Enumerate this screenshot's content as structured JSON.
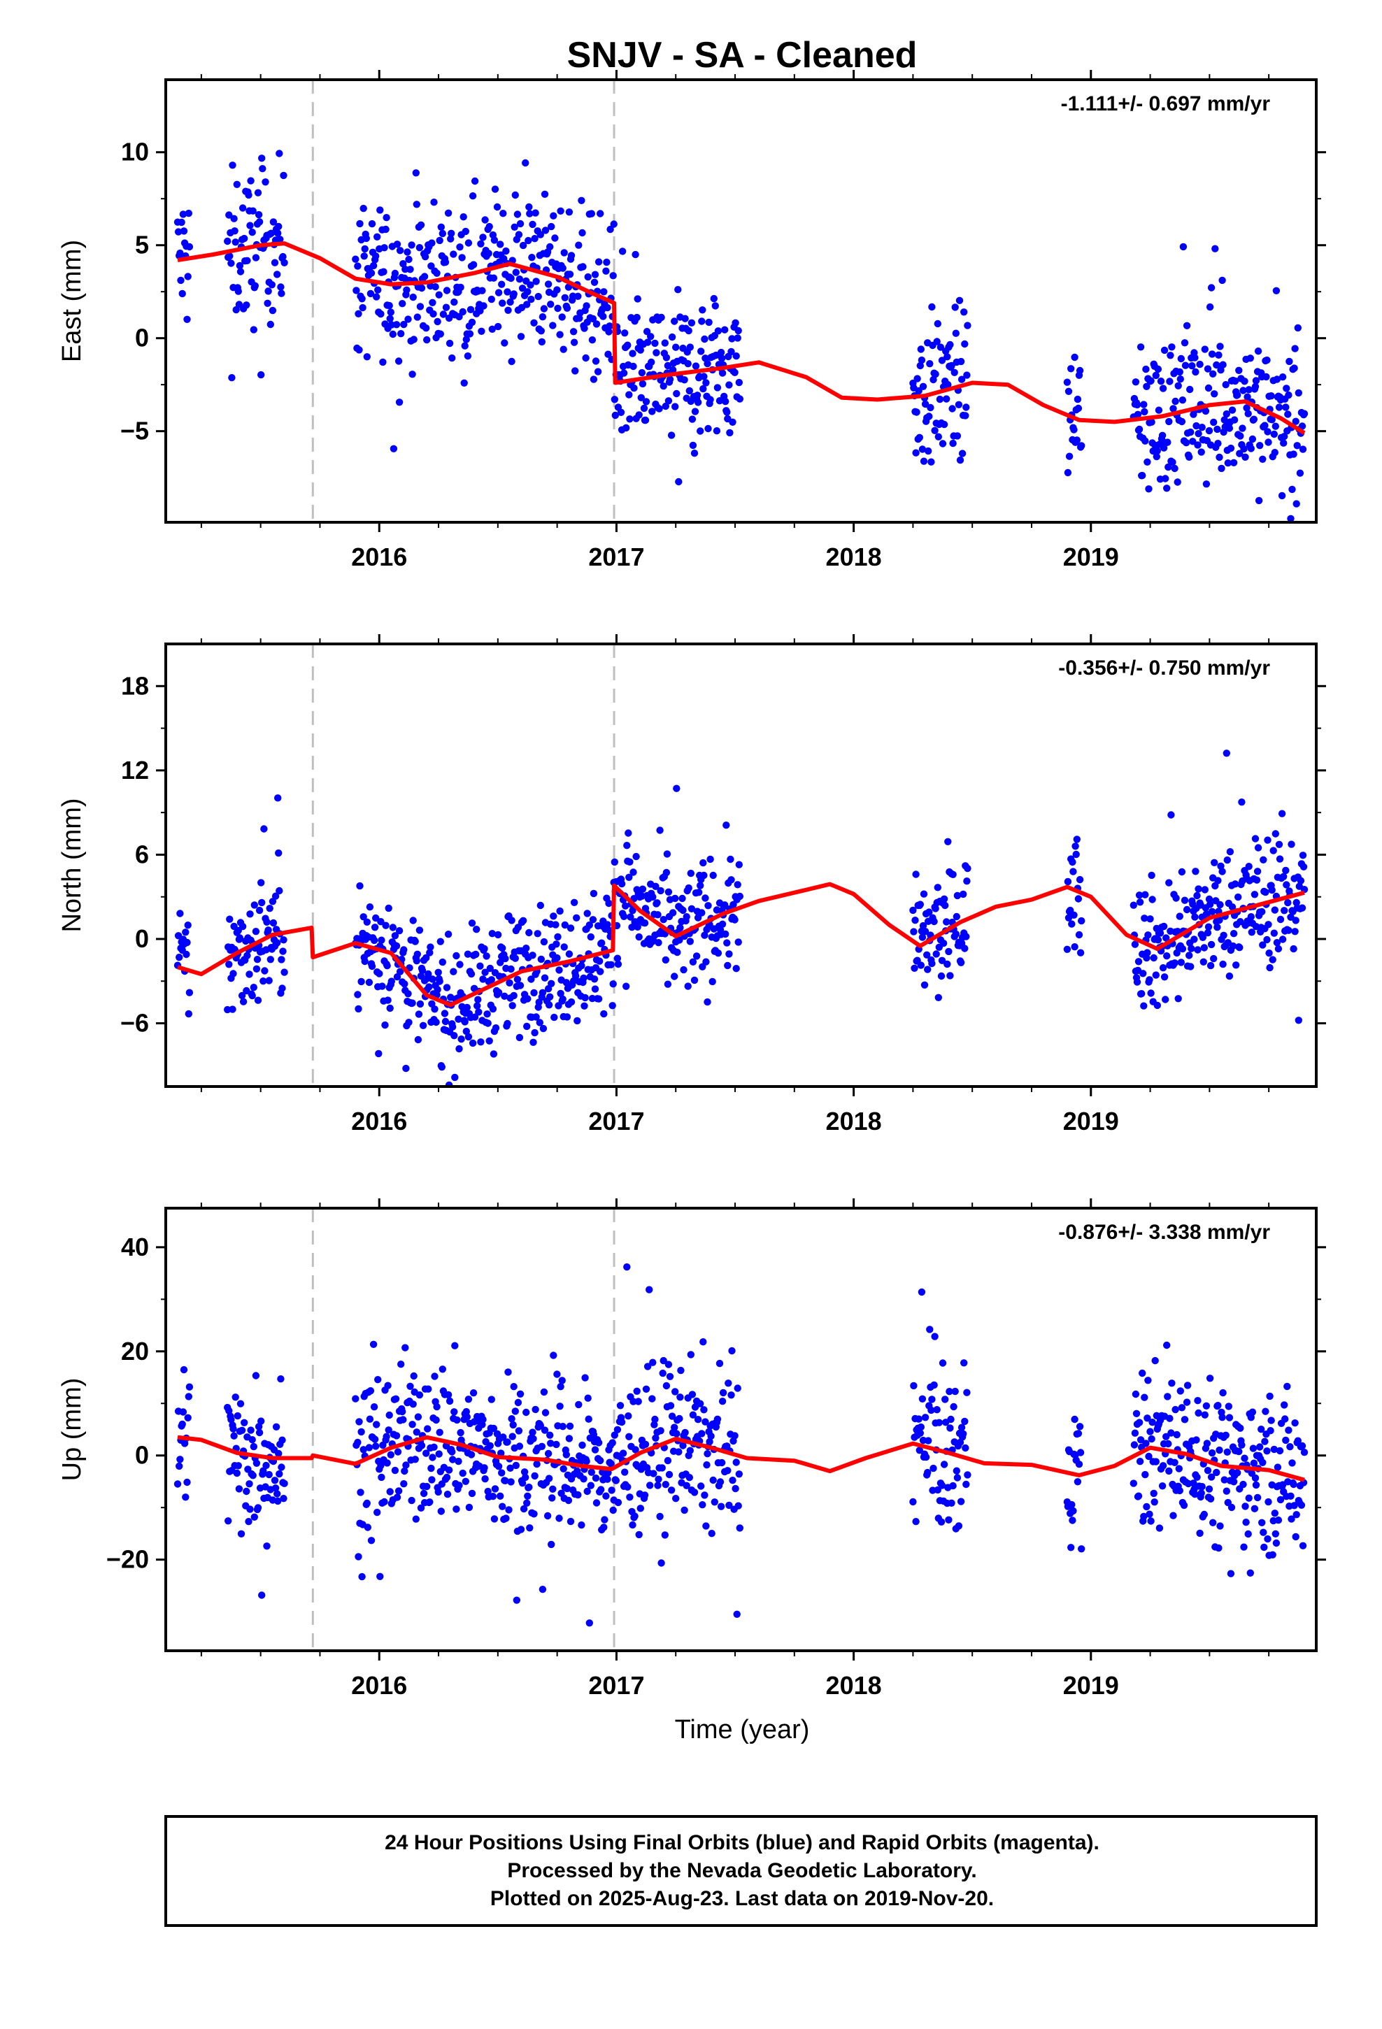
{
  "title": "SNJV  - SA - Cleaned",
  "xlabel": "Time (year)",
  "footer": [
    "24 Hour Positions Using Final Orbits (blue) and Rapid Orbits (magenta).",
    "Processed by the Nevada Geodetic Laboratory.",
    "Plotted on 2025-Aug-23. Last data on 2019-Nov-20."
  ],
  "colors": {
    "final_orbits": "#0000ff",
    "model": "#ff0000",
    "steps": "#bfbfbf"
  },
  "chart_data": [
    {
      "type": "scatter",
      "component": "east",
      "ylabel": "East (mm)",
      "rate_text": "-1.111+/- 0.697 mm/yr",
      "xlim": [
        2015.1,
        2019.95
      ],
      "ylim": [
        -9.9,
        13.9
      ],
      "yticks": [
        -5,
        0,
        5,
        10
      ],
      "yticklabels": [
        "−5",
        "0",
        "5",
        "10"
      ],
      "xticks": [
        2016,
        2017,
        2018,
        2019
      ],
      "step_lines": [
        2015.72,
        2016.99
      ],
      "data_segments": [
        [
          2015.15,
          2015.2
        ],
        [
          2015.36,
          2015.6
        ],
        [
          2015.9,
          2017.52
        ],
        [
          2018.25,
          2018.48
        ],
        [
          2018.9,
          2018.96
        ],
        [
          2019.18,
          2019.9
        ]
      ],
      "model": [
        [
          2015.15,
          4.2
        ],
        [
          2015.3,
          4.5
        ],
        [
          2015.5,
          5.0
        ],
        [
          2015.6,
          5.1
        ],
        [
          2015.75,
          4.3
        ],
        [
          2015.9,
          3.2
        ],
        [
          2016.05,
          2.9
        ],
        [
          2016.2,
          3.0
        ],
        [
          2016.4,
          3.5
        ],
        [
          2016.55,
          4.0
        ],
        [
          2016.75,
          3.3
        ],
        [
          2016.9,
          2.4
        ],
        [
          2016.99,
          1.9
        ],
        [
          2016.995,
          -2.4
        ],
        [
          2017.2,
          -2.0
        ],
        [
          2017.45,
          -1.6
        ],
        [
          2017.6,
          -1.3
        ],
        [
          2017.8,
          -2.1
        ],
        [
          2017.95,
          -3.2
        ],
        [
          2018.1,
          -3.3
        ],
        [
          2018.3,
          -3.1
        ],
        [
          2018.5,
          -2.4
        ],
        [
          2018.65,
          -2.5
        ],
        [
          2018.8,
          -3.6
        ],
        [
          2018.95,
          -4.4
        ],
        [
          2019.1,
          -4.5
        ],
        [
          2019.3,
          -4.2
        ],
        [
          2019.5,
          -3.6
        ],
        [
          2019.65,
          -3.4
        ],
        [
          2019.8,
          -4.3
        ],
        [
          2019.9,
          -5.1
        ]
      ],
      "sample_noise": 2.0
    },
    {
      "type": "scatter",
      "component": "north",
      "ylabel": "North (mm)",
      "rate_text": "-0.356+/- 0.750 mm/yr",
      "xlim": [
        2015.1,
        2019.95
      ],
      "ylim": [
        -10.5,
        21.0
      ],
      "yticks": [
        -6,
        0,
        6,
        12,
        18
      ],
      "yticklabels": [
        "−6",
        "0",
        "6",
        "12",
        "18"
      ],
      "xticks": [
        2016,
        2017,
        2018,
        2019
      ],
      "step_lines": [
        2015.72,
        2016.99
      ],
      "data_segments": [
        [
          2015.15,
          2015.2
        ],
        [
          2015.36,
          2015.6
        ],
        [
          2015.9,
          2017.52
        ],
        [
          2018.25,
          2018.48
        ],
        [
          2018.9,
          2018.96
        ],
        [
          2019.18,
          2019.9
        ]
      ],
      "model": [
        [
          2015.15,
          -2.0
        ],
        [
          2015.25,
          -2.5
        ],
        [
          2015.4,
          -1.0
        ],
        [
          2015.55,
          0.3
        ],
        [
          2015.715,
          0.8
        ],
        [
          2015.72,
          -1.3
        ],
        [
          2015.9,
          -0.3
        ],
        [
          2016.05,
          -1.0
        ],
        [
          2016.2,
          -4.0
        ],
        [
          2016.3,
          -4.7
        ],
        [
          2016.45,
          -3.5
        ],
        [
          2016.6,
          -2.3
        ],
        [
          2016.8,
          -1.6
        ],
        [
          2016.985,
          -0.8
        ],
        [
          2016.99,
          3.8
        ],
        [
          2017.1,
          2.0
        ],
        [
          2017.25,
          0.2
        ],
        [
          2017.45,
          1.8
        ],
        [
          2017.6,
          2.7
        ],
        [
          2017.75,
          3.3
        ],
        [
          2017.9,
          3.9
        ],
        [
          2018.0,
          3.2
        ],
        [
          2018.15,
          1.0
        ],
        [
          2018.28,
          -0.5
        ],
        [
          2018.45,
          1.2
        ],
        [
          2018.6,
          2.3
        ],
        [
          2018.75,
          2.8
        ],
        [
          2018.9,
          3.7
        ],
        [
          2019.0,
          3.0
        ],
        [
          2019.15,
          0.3
        ],
        [
          2019.28,
          -0.7
        ],
        [
          2019.5,
          1.5
        ],
        [
          2019.7,
          2.4
        ],
        [
          2019.9,
          3.3
        ]
      ],
      "sample_noise": 2.2
    },
    {
      "type": "scatter",
      "component": "up",
      "ylabel": "Up (mm)",
      "rate_text": "-0.876+/- 3.338 mm/yr",
      "xlim": [
        2015.1,
        2019.95
      ],
      "ylim": [
        -37.5,
        47.5
      ],
      "yticks": [
        -20,
        0,
        20,
        40
      ],
      "yticklabels": [
        "−20",
        "0",
        "20",
        "40"
      ],
      "xticks": [
        2016,
        2017,
        2018,
        2019
      ],
      "step_lines": [
        2015.72,
        2016.99
      ],
      "data_segments": [
        [
          2015.15,
          2015.2
        ],
        [
          2015.36,
          2015.6
        ],
        [
          2015.9,
          2017.52
        ],
        [
          2018.25,
          2018.48
        ],
        [
          2018.9,
          2018.96
        ],
        [
          2019.18,
          2019.9
        ]
      ],
      "model": [
        [
          2015.15,
          3.5
        ],
        [
          2015.25,
          3.0
        ],
        [
          2015.4,
          0.5
        ],
        [
          2015.55,
          -0.5
        ],
        [
          2015.715,
          -0.5
        ],
        [
          2015.72,
          0.0
        ],
        [
          2015.9,
          -1.6
        ],
        [
          2016.05,
          1.5
        ],
        [
          2016.2,
          3.5
        ],
        [
          2016.35,
          2.0
        ],
        [
          2016.5,
          -0.3
        ],
        [
          2016.7,
          -0.8
        ],
        [
          2016.85,
          -2.0
        ],
        [
          2016.98,
          -2.6
        ],
        [
          2017.1,
          0.5
        ],
        [
          2017.25,
          3.2
        ],
        [
          2017.4,
          1.5
        ],
        [
          2017.55,
          -0.5
        ],
        [
          2017.75,
          -1.0
        ],
        [
          2017.9,
          -3.0
        ],
        [
          2018.05,
          -0.5
        ],
        [
          2018.25,
          2.3
        ],
        [
          2018.4,
          0.5
        ],
        [
          2018.55,
          -1.5
        ],
        [
          2018.75,
          -1.8
        ],
        [
          2018.95,
          -3.8
        ],
        [
          2019.1,
          -2.0
        ],
        [
          2019.25,
          1.5
        ],
        [
          2019.4,
          0.3
        ],
        [
          2019.55,
          -2.0
        ],
        [
          2019.75,
          -2.8
        ],
        [
          2019.9,
          -4.7
        ]
      ],
      "sample_noise": 7.5
    }
  ]
}
